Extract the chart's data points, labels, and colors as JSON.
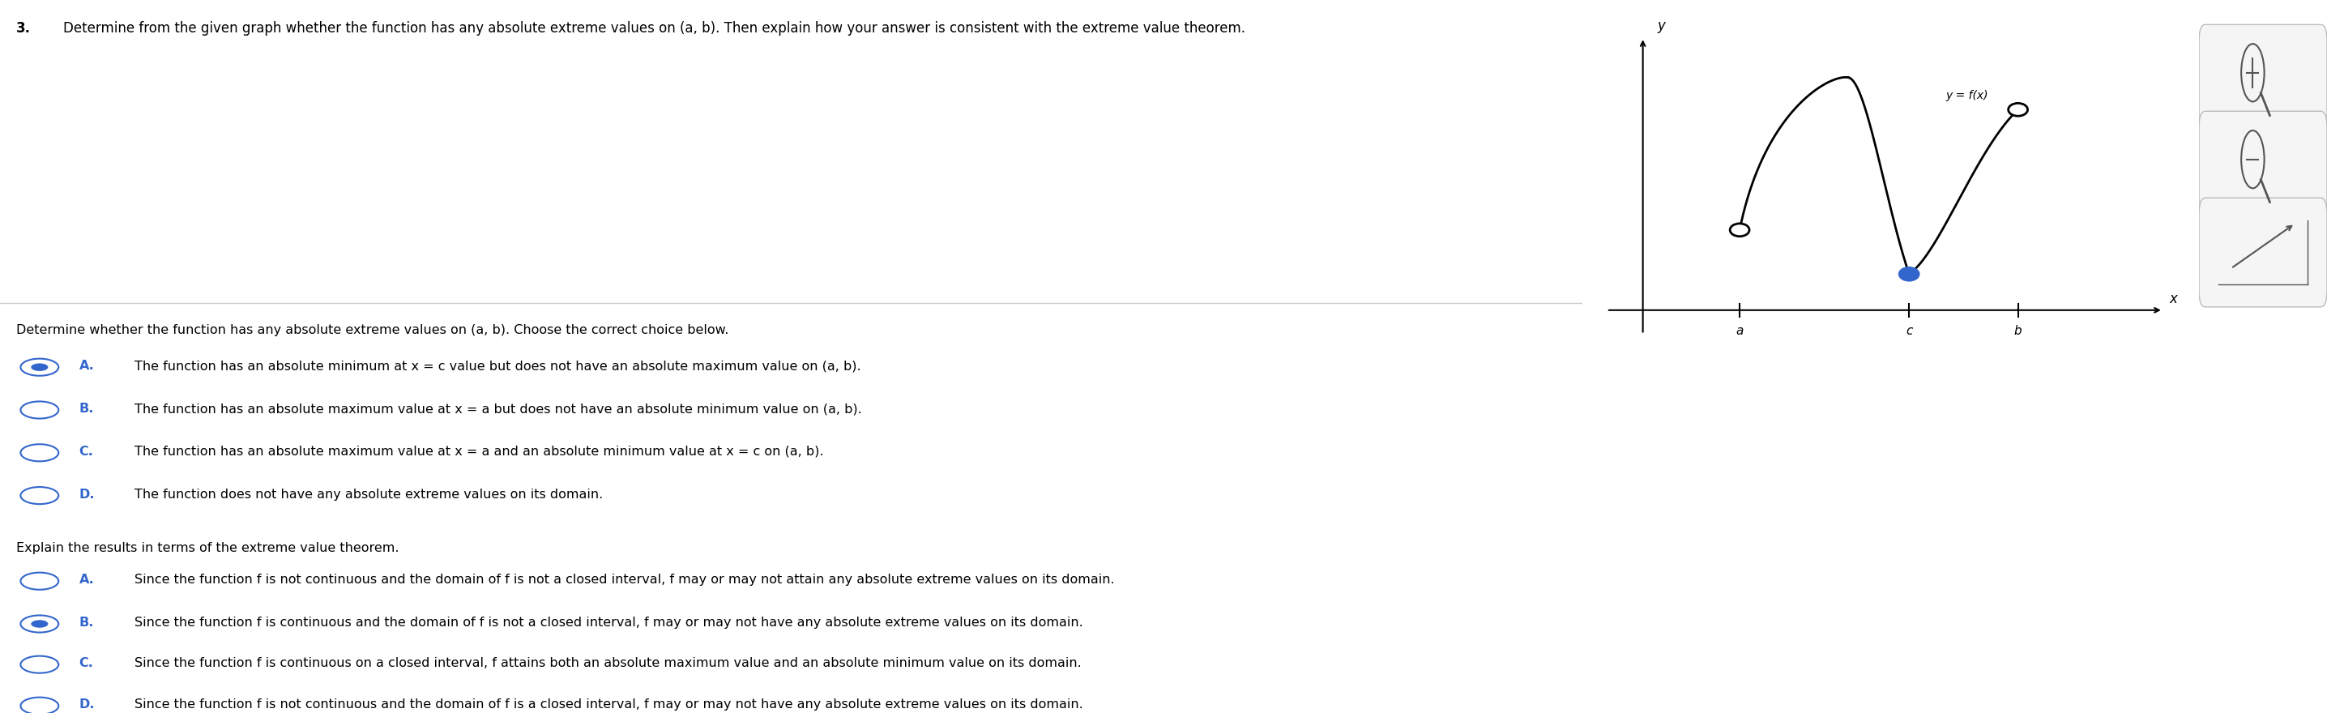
{
  "title_number": "3.",
  "title_text": "Determine from the given graph whether the function has any absolute extreme values on (a, b). Then explain how your answer is consistent with the extreme value theorem.",
  "graph_title_y": "y",
  "graph_label_fx": "y = f(x)",
  "graph_x_label": "x",
  "graph_points": [
    "a",
    "c",
    "b"
  ],
  "section1_prompt": "Determine whether the function has any absolute extreme values on (a, b). Choose the correct choice below.",
  "choices1": [
    [
      "A.",
      "The function has an absolute minimum at x = c value but does not have an absolute maximum value on (a, b)."
    ],
    [
      "B.",
      "The function has an absolute maximum value at x = a but does not have an absolute minimum value on (a, b)."
    ],
    [
      "C.",
      "The function has an absolute maximum value at x = a and an absolute minimum value at x = c on (a, b)."
    ],
    [
      "D.",
      "The function does not have any absolute extreme values on its domain."
    ]
  ],
  "section2_prompt": "Explain the results in terms of the extreme value theorem.",
  "choices2": [
    [
      "A.",
      "Since the function f is not continuous and the domain of f is not a closed interval, f may or may not attain any absolute extreme values on its domain."
    ],
    [
      "B.",
      "Since the function f is continuous and the domain of f is not a closed interval, f may or may not have any absolute extreme values on its domain."
    ],
    [
      "C.",
      "Since the function f is continuous on a closed interval, f attains both an absolute maximum value and an absolute minimum value on its domain."
    ],
    [
      "D.",
      "Since the function f is not continuous and the domain of f is a closed interval, f may or may not have any absolute extreme values on its domain."
    ]
  ],
  "selected1": "A",
  "selected2": "B",
  "bg_color": "#ffffff",
  "text_color": "#000000",
  "choice_label_color": "#3366cc",
  "radio_color": "#3366cc",
  "divider_color": "#cccccc",
  "graph_curve_color": "#000000",
  "graph_dot_open_color": "#ffffff",
  "graph_dot_filled_color": "#3366cc"
}
